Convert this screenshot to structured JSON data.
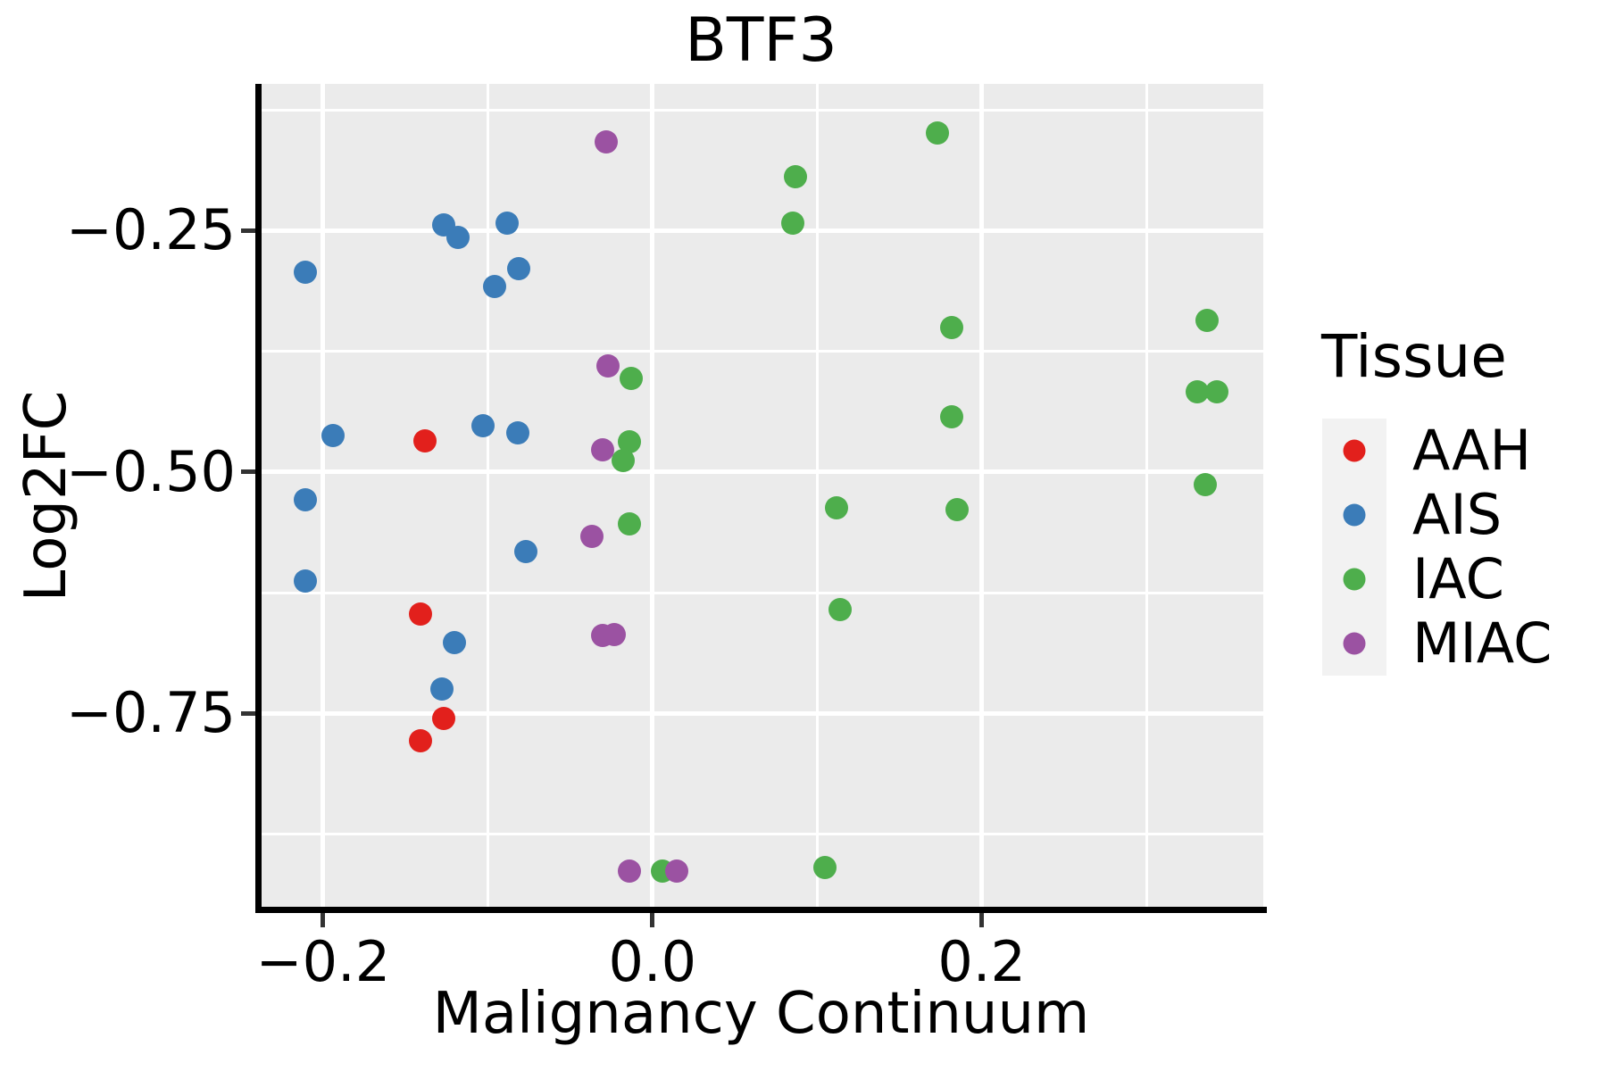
{
  "chart_data": {
    "type": "scatter",
    "title": "BTF3",
    "xlabel": "Malignancy Continuum",
    "ylabel": "Log2FC",
    "xlim": [
      -0.239,
      0.371
    ],
    "ylim": [
      -0.953,
      -0.098
    ],
    "grid": "white major and minor gridlines on gray panel",
    "x_major_ticks": [
      -0.2,
      0.0,
      0.2
    ],
    "x_major_tick_labels": [
      "−0.2",
      "0.0",
      "0.2"
    ],
    "x_minor_gridlines": [
      -0.1,
      0.1,
      0.3
    ],
    "y_major_ticks": [
      -0.25,
      -0.5,
      -0.75
    ],
    "y_major_tick_labels": [
      "−0.25",
      "−0.50",
      "−0.75"
    ],
    "y_minor_gridlines": [
      -0.125,
      -0.375,
      -0.625,
      -0.875
    ],
    "legend": {
      "title": "Tissue",
      "position": "right"
    },
    "colors": {
      "panel_background": "#EBEBEB",
      "gridline": "#FFFFFF",
      "axis_line": "#000000",
      "tick_mark": "#333333",
      "legend_key_background": "#F2F2F2"
    },
    "series": [
      {
        "name": "AAH",
        "color": "#E2201C",
        "points": [
          [
            -0.138,
            -0.468
          ],
          [
            -0.141,
            -0.647
          ],
          [
            -0.127,
            -0.755
          ],
          [
            -0.141,
            -0.778
          ]
        ]
      },
      {
        "name": "AIS",
        "color": "#3B7CB8",
        "points": [
          [
            -0.211,
            -0.293
          ],
          [
            -0.127,
            -0.244
          ],
          [
            -0.118,
            -0.257
          ],
          [
            -0.088,
            -0.242
          ],
          [
            -0.081,
            -0.289
          ],
          [
            -0.096,
            -0.308
          ],
          [
            -0.194,
            -0.462
          ],
          [
            -0.103,
            -0.452
          ],
          [
            -0.082,
            -0.459
          ],
          [
            -0.211,
            -0.529
          ],
          [
            -0.077,
            -0.582
          ],
          [
            -0.211,
            -0.613
          ],
          [
            -0.12,
            -0.677
          ],
          [
            -0.128,
            -0.725
          ]
        ]
      },
      {
        "name": "IAC",
        "color": "#4EAE4C",
        "points": [
          [
            0.173,
            -0.149
          ],
          [
            0.087,
            -0.194
          ],
          [
            0.085,
            -0.242
          ],
          [
            0.337,
            -0.343
          ],
          [
            0.182,
            -0.35
          ],
          [
            -0.013,
            -0.403
          ],
          [
            0.331,
            -0.417
          ],
          [
            0.343,
            -0.417
          ],
          [
            0.182,
            -0.443
          ],
          [
            -0.014,
            -0.469
          ],
          [
            -0.018,
            -0.488
          ],
          [
            0.336,
            -0.513
          ],
          [
            0.112,
            -0.537
          ],
          [
            0.185,
            -0.539
          ],
          [
            -0.014,
            -0.554
          ],
          [
            0.114,
            -0.642
          ],
          [
            0.105,
            -0.91
          ],
          [
            0.006,
            -0.913
          ]
        ]
      },
      {
        "name": "MIAC",
        "color": "#9B52A2",
        "points": [
          [
            -0.028,
            -0.158
          ],
          [
            -0.027,
            -0.39
          ],
          [
            -0.03,
            -0.477
          ],
          [
            -0.037,
            -0.567
          ],
          [
            -0.03,
            -0.669
          ],
          [
            -0.023,
            -0.668
          ],
          [
            -0.014,
            -0.913
          ],
          [
            0.015,
            -0.913
          ]
        ]
      }
    ]
  }
}
